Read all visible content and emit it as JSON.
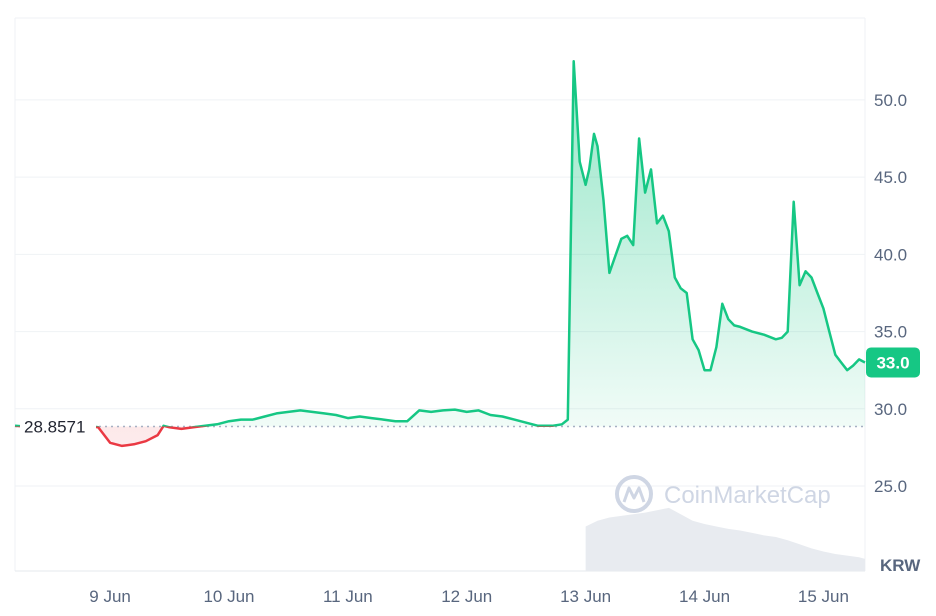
{
  "chart_data": {
    "type": "area",
    "currency": "KRW",
    "watermark": "CoinMarketCap",
    "baseline_value": 28.8571,
    "baseline_label": "28.8571",
    "current_value": 33.0,
    "current_label": "33.0",
    "yticks": [
      {
        "value": 25,
        "label": "25.0"
      },
      {
        "value": 30,
        "label": "30.0"
      },
      {
        "value": 35,
        "label": "35.0"
      },
      {
        "value": 40,
        "label": "40.0"
      },
      {
        "value": 45,
        "label": "45.0"
      },
      {
        "value": 50,
        "label": "50.0"
      }
    ],
    "xticks": [
      {
        "value": 1,
        "label": "9 Jun"
      },
      {
        "value": 2,
        "label": "10 Jun"
      },
      {
        "value": 3,
        "label": "11 Jun"
      },
      {
        "value": 4,
        "label": "12 Jun"
      },
      {
        "value": 5,
        "label": "13 Jun"
      },
      {
        "value": 6,
        "label": "14 Jun"
      },
      {
        "value": 7,
        "label": "15 Jun"
      }
    ],
    "xlim": [
      0.2,
      7.35
    ],
    "ylim": [
      19.5,
      55.3
    ],
    "grid": true,
    "colors": {
      "up": "#16c784",
      "down": "#ea3943",
      "grid": "#eff2f5",
      "axis_text": "#58667e",
      "volume": "#e8ebf0"
    },
    "series": [
      {
        "x": [
          0.2,
          0.3,
          0.4,
          0.5,
          0.6,
          0.7,
          0.8,
          0.9,
          1.0,
          1.1,
          1.2,
          1.3,
          1.4,
          1.45,
          1.5,
          1.6,
          1.7,
          1.8,
          1.9,
          2.0,
          2.1,
          2.2,
          2.3,
          2.4,
          2.5,
          2.6,
          2.7,
          2.8,
          2.9,
          3.0,
          3.1,
          3.2,
          3.3,
          3.4,
          3.5,
          3.6,
          3.7,
          3.8,
          3.9,
          4.0,
          4.1,
          4.2,
          4.3,
          4.4,
          4.5,
          4.6,
          4.65,
          4.68,
          4.72,
          4.8,
          4.85,
          4.9,
          4.95,
          5.0,
          5.03,
          5.07,
          5.1,
          5.15,
          5.2,
          5.3,
          5.35,
          5.4,
          5.45,
          5.5,
          5.55,
          5.6,
          5.65,
          5.7,
          5.75,
          5.8,
          5.85,
          5.9,
          5.95,
          6.0,
          6.05,
          6.1,
          6.15,
          6.2,
          6.25,
          6.3,
          6.4,
          6.5,
          6.6,
          6.65,
          6.7,
          6.75,
          6.8,
          6.85,
          6.9,
          6.95,
          7.0,
          7.05,
          7.1,
          7.15,
          7.2,
          7.25,
          7.3,
          7.35
        ],
        "values": [
          28.9,
          28.85,
          28.8,
          28.9,
          29.0,
          28.9,
          28.9,
          28.8,
          27.8,
          27.6,
          27.7,
          27.9,
          28.3,
          28.9,
          28.8,
          28.7,
          28.8,
          28.9,
          29.0,
          29.2,
          29.3,
          29.3,
          29.5,
          29.7,
          29.8,
          29.9,
          29.8,
          29.7,
          29.6,
          29.4,
          29.5,
          29.4,
          29.3,
          29.2,
          29.2,
          29.9,
          29.8,
          29.9,
          29.95,
          29.8,
          29.9,
          29.6,
          29.5,
          29.3,
          29.1,
          28.9,
          28.9,
          28.9,
          28.9,
          29.0,
          29.3,
          52.5,
          46.0,
          44.5,
          45.5,
          47.8,
          47.0,
          43.5,
          38.8,
          41.0,
          41.2,
          40.6,
          47.5,
          44.0,
          45.5,
          42.0,
          42.5,
          41.5,
          38.5,
          37.8,
          37.5,
          34.5,
          33.8,
          32.5,
          32.5,
          34.0,
          36.8,
          35.8,
          35.4,
          35.3,
          35.0,
          34.8,
          34.5,
          34.6,
          35.0,
          43.4,
          38.0,
          38.9,
          38.5,
          37.5,
          36.5,
          35.0,
          33.5,
          33.0,
          32.5,
          32.8,
          33.2,
          33.0
        ]
      }
    ],
    "volume": {
      "x": [
        5.0,
        5.1,
        5.2,
        5.3,
        5.4,
        5.5,
        5.6,
        5.7,
        5.8,
        5.9,
        6.0,
        6.1,
        6.2,
        6.3,
        6.4,
        6.5,
        6.6,
        6.7,
        6.8,
        6.9,
        7.0,
        7.1,
        7.2,
        7.3,
        7.35
      ],
      "values": [
        0.55,
        0.62,
        0.66,
        0.68,
        0.7,
        0.72,
        0.75,
        0.78,
        0.7,
        0.62,
        0.58,
        0.55,
        0.52,
        0.5,
        0.47,
        0.44,
        0.42,
        0.38,
        0.33,
        0.28,
        0.24,
        0.21,
        0.19,
        0.17,
        0.15
      ]
    }
  }
}
